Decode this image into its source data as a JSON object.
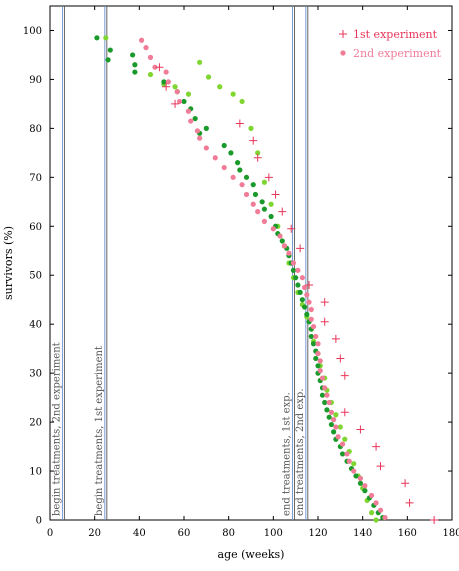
{
  "chart_data": {
    "type": "scatter",
    "title": "",
    "xlabel": "age (weeks)",
    "ylabel": "survivors (%)",
    "xlim": [
      0,
      180
    ],
    "ylim": [
      0,
      105
    ],
    "xticks": [
      0,
      20,
      40,
      60,
      80,
      100,
      120,
      140,
      160,
      180
    ],
    "yticks": [
      0,
      10,
      20,
      30,
      40,
      50,
      60,
      70,
      80,
      90,
      100
    ],
    "grid": false,
    "legend_position": "top-right",
    "vertical_lines": [
      {
        "x": 6,
        "label": "begin treatments, 2nd experiment"
      },
      {
        "x": 25,
        "label": "begin treatments, 1st experiment"
      },
      {
        "x": 109,
        "label": "end treatments, 1st exp."
      },
      {
        "x": 115,
        "label": "end treatments, 2nd exp."
      }
    ],
    "series": [
      {
        "name": "1st experiment",
        "marker": "plus",
        "color": "#e8365a",
        "points": [
          [
            49,
            92.5
          ],
          [
            52,
            88.5
          ],
          [
            56,
            85
          ],
          [
            85,
            81
          ],
          [
            91,
            77.5
          ],
          [
            93,
            74
          ],
          [
            98,
            70
          ],
          [
            101,
            66.5
          ],
          [
            104,
            63
          ],
          [
            108,
            59.5
          ],
          [
            112,
            55.5
          ],
          [
            116,
            48
          ],
          [
            123,
            44.5
          ],
          [
            123,
            40.5
          ],
          [
            128,
            37
          ],
          [
            130,
            33
          ],
          [
            132,
            29.5
          ],
          [
            132,
            22
          ],
          [
            139,
            18.5
          ],
          [
            146,
            15
          ],
          [
            148,
            11
          ],
          [
            159,
            7.5
          ],
          [
            161,
            3.5
          ],
          [
            172,
            0
          ]
        ]
      },
      {
        "name": "2nd experiment",
        "marker": "dot",
        "color": "#f07c98",
        "points": [
          [
            41,
            98
          ],
          [
            43,
            96.5
          ],
          [
            45,
            94.5
          ],
          [
            47,
            92.5
          ],
          [
            52,
            91.5
          ],
          [
            53,
            89.5
          ],
          [
            57,
            87.5
          ],
          [
            58,
            85.5
          ],
          [
            62,
            83.5
          ],
          [
            63,
            81.5
          ],
          [
            66,
            79.5
          ],
          [
            67,
            78
          ],
          [
            70,
            76
          ],
          [
            74,
            74
          ],
          [
            78,
            72
          ],
          [
            82,
            70
          ],
          [
            86,
            68.5
          ],
          [
            88,
            66.5
          ],
          [
            91,
            64.5
          ],
          [
            93,
            63
          ],
          [
            96,
            61
          ],
          [
            100,
            59.5
          ],
          [
            103,
            58
          ],
          [
            105,
            56
          ],
          [
            107,
            54.5
          ],
          [
            109,
            52.5
          ],
          [
            111,
            51
          ],
          [
            113,
            49.5
          ],
          [
            114,
            47.5
          ],
          [
            115,
            46
          ],
          [
            116,
            44.5
          ],
          [
            117,
            43
          ],
          [
            117,
            41
          ],
          [
            118,
            39.5
          ],
          [
            119,
            37.5
          ],
          [
            120,
            36
          ],
          [
            120,
            34
          ],
          [
            121,
            32.5
          ],
          [
            121,
            30.5
          ],
          [
            122,
            29
          ],
          [
            123,
            27
          ],
          [
            124,
            25.5
          ],
          [
            125,
            24
          ],
          [
            126,
            22
          ],
          [
            127,
            20.5
          ],
          [
            128,
            19
          ],
          [
            129,
            17
          ],
          [
            131,
            15.5
          ],
          [
            133,
            13.5
          ],
          [
            134,
            12
          ],
          [
            136,
            10
          ],
          [
            139,
            8.5
          ],
          [
            141,
            7
          ],
          [
            144,
            5
          ],
          [
            146,
            3.5
          ],
          [
            148,
            2
          ],
          [
            150,
            0.5
          ]
        ]
      },
      {
        "name": "",
        "marker": "dot",
        "color": "#1a9a2a",
        "points": [
          [
            21,
            98.5
          ],
          [
            27,
            96
          ],
          [
            26,
            94
          ],
          [
            37,
            95
          ],
          [
            38,
            93
          ],
          [
            38,
            91.5
          ],
          [
            51,
            89.5
          ],
          [
            57,
            87.5
          ],
          [
            60,
            85.5
          ],
          [
            63,
            84
          ],
          [
            65,
            82
          ],
          [
            70,
            80
          ],
          [
            67,
            79
          ],
          [
            78,
            76.5
          ],
          [
            81,
            75
          ],
          [
            84,
            73
          ],
          [
            85,
            71.5
          ],
          [
            88,
            70
          ],
          [
            91,
            68.5
          ],
          [
            92,
            66.5
          ],
          [
            95,
            65
          ],
          [
            96,
            63.5
          ],
          [
            99,
            62
          ],
          [
            101,
            60
          ],
          [
            102,
            58.5
          ],
          [
            104,
            57
          ],
          [
            106,
            55.5
          ],
          [
            107,
            54
          ],
          [
            108,
            52.5
          ],
          [
            109,
            51
          ],
          [
            110,
            49.5
          ],
          [
            111,
            48
          ],
          [
            112,
            46.5
          ],
          [
            113,
            45
          ],
          [
            114,
            43.5
          ],
          [
            115,
            42
          ],
          [
            116,
            40.5
          ],
          [
            117,
            39
          ],
          [
            117,
            37.5
          ],
          [
            118,
            36
          ],
          [
            119,
            34.5
          ],
          [
            119,
            33
          ],
          [
            120,
            31.5
          ],
          [
            120,
            30
          ],
          [
            121,
            28.5
          ],
          [
            122,
            27
          ],
          [
            122,
            25.5
          ],
          [
            123,
            24
          ],
          [
            124,
            22.5
          ],
          [
            125,
            21
          ],
          [
            126,
            19.5
          ],
          [
            127,
            18
          ],
          [
            128,
            16.5
          ],
          [
            130,
            15
          ],
          [
            131,
            13.5
          ],
          [
            133,
            12
          ],
          [
            135,
            10.5
          ],
          [
            137,
            9
          ],
          [
            139,
            7.5
          ],
          [
            141,
            6
          ],
          [
            143,
            4.5
          ],
          [
            145,
            3
          ],
          [
            147,
            1.5
          ],
          [
            149,
            0.5
          ]
        ]
      },
      {
        "name": "",
        "marker": "dot",
        "color": "#7fd630",
        "points": [
          [
            25,
            98.5
          ],
          [
            45,
            91
          ],
          [
            51,
            89
          ],
          [
            56,
            88.5
          ],
          [
            62,
            87
          ],
          [
            67,
            93.5
          ],
          [
            71,
            90.5
          ],
          [
            76,
            88.5
          ],
          [
            82,
            87
          ],
          [
            86,
            85.5
          ],
          [
            90,
            80
          ],
          [
            93,
            75
          ],
          [
            96,
            69
          ],
          [
            99,
            64.5
          ],
          [
            102,
            60
          ],
          [
            105,
            56
          ],
          [
            107,
            52.5
          ],
          [
            109,
            49.5
          ],
          [
            111,
            46.5
          ],
          [
            113,
            44
          ],
          [
            115,
            41.5
          ],
          [
            117,
            39
          ],
          [
            118,
            36.5
          ],
          [
            120,
            34
          ],
          [
            121,
            31.5
          ],
          [
            123,
            29
          ],
          [
            124,
            26.5
          ],
          [
            126,
            24
          ],
          [
            128,
            21.5
          ],
          [
            130,
            19
          ],
          [
            132,
            16.5
          ],
          [
            134,
            14
          ],
          [
            136,
            11.5
          ],
          [
            138,
            9
          ],
          [
            140,
            6.5
          ],
          [
            142,
            4
          ],
          [
            144,
            1.5
          ],
          [
            146,
            0
          ]
        ]
      }
    ]
  },
  "legend": [
    {
      "label": "1st experiment",
      "marker": "plus",
      "color": "#e8365a"
    },
    {
      "label": "2nd experiment",
      "marker": "dot",
      "color": "#f07c98"
    }
  ]
}
